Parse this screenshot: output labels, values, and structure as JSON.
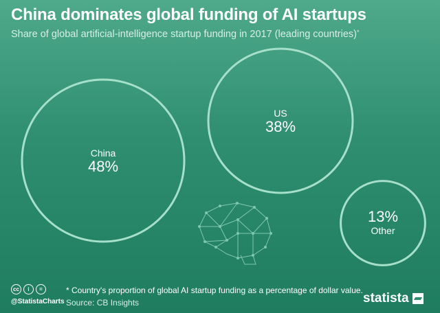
{
  "header": {
    "title": "China dominates global funding of AI startups",
    "subtitle": "Share of global artificial-intelligence startup funding in 2017 (leading countries)",
    "subtitle_mark": "*"
  },
  "chart_data": {
    "type": "bubble",
    "title": "China dominates global funding of AI startups",
    "unit": "%",
    "items": [
      {
        "label": "China",
        "value": 48,
        "display": "48%"
      },
      {
        "label": "US",
        "value": 38,
        "display": "38%"
      },
      {
        "label": "Other",
        "value": 13,
        "display": "13%"
      }
    ]
  },
  "footer": {
    "note": "* Country's proportion of global AI startup funding as a percentage of dollar value.",
    "source": "Source: CB Insights",
    "handle": "@StatistaCharts",
    "cc_icons": [
      "cc-icon",
      "by-icon",
      "nd-icon"
    ],
    "brand": "statista"
  },
  "colors": {
    "background_top": "#4fa98b",
    "background_bottom": "#1f7c5f",
    "circle_stroke": "#a6e0cb"
  }
}
